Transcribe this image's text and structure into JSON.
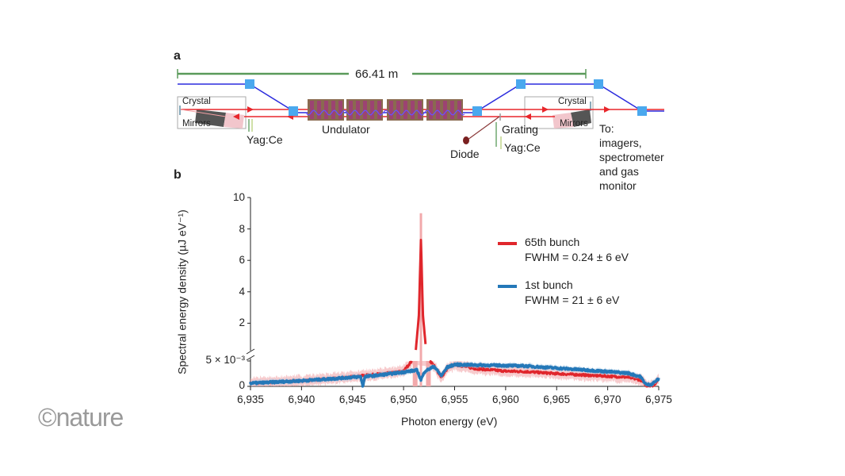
{
  "panel_a": {
    "label": "a",
    "distance": "66.41 m",
    "labels": {
      "crystal_left": "Crystal",
      "mirrors_left": "Mirrors",
      "yag_left": "Yag:Ce",
      "undulator": "Undulator",
      "diode": "Diode",
      "grating": "Grating",
      "yag_right": "Yag:Ce",
      "crystal_right": "Crystal",
      "mirrors_right": "Mirrors",
      "to_1": "To:",
      "to_2": "imagers,",
      "to_3": "spectrometer",
      "to_4": "and gas",
      "to_5": "monitor"
    },
    "colors": {
      "electron": "#2b2bdd",
      "xray": "#e8262b",
      "scale": "#5a9a5a",
      "element": "#4aa8ee"
    }
  },
  "logo": "©nature",
  "chart_data": {
    "panel_label": "b",
    "type": "line",
    "xlabel": "Photon energy (eV)",
    "ylabel": "Spectral energy density (µJ eV⁻¹)",
    "xlim": [
      6935,
      6975
    ],
    "x_ticks": [
      "6,935",
      "6,940",
      "6,945",
      "6,950",
      "6,955",
      "6,960",
      "6,965",
      "6,970",
      "6,975"
    ],
    "y_axis_broken": true,
    "upper_ylim": [
      0,
      10
    ],
    "upper_ticks": [
      "2",
      "4",
      "6",
      "8",
      "10"
    ],
    "lower_ylim": [
      0,
      0.005
    ],
    "lower_ticks": [
      "0",
      "5 × 10⁻³"
    ],
    "legend_position": "right",
    "series": [
      {
        "name": "65th bunch",
        "annotation": "FWHM = 0.24 ± 6 eV",
        "color": "#e0262c",
        "band_color": "#f2a9ab",
        "x": [
          6935,
          6937,
          6940,
          6943,
          6945,
          6947,
          6949,
          6950,
          6950.8,
          6951.2,
          6951.5,
          6951.7,
          6951.9,
          6952.2,
          6952.6,
          6953,
          6953.7,
          6954.3,
          6955,
          6957,
          6960,
          6962,
          6965,
          6968,
          6970,
          6972,
          6973.3,
          6973.8,
          6974.5,
          6975
        ],
        "y": [
          0.0006,
          0.0008,
          0.0011,
          0.0015,
          0.0019,
          0.0023,
          0.0027,
          0.003,
          0.005,
          0.3,
          2.5,
          7.3,
          2.5,
          0.3,
          0.005,
          0.004,
          0.0018,
          0.0035,
          0.0043,
          0.0035,
          0.003,
          0.0029,
          0.0025,
          0.0022,
          0.002,
          0.0018,
          0.0012,
          0.0001,
          0.0002,
          0.0015
        ],
        "band": 0.0012,
        "peak_band_max": 9.0
      },
      {
        "name": "1st bunch",
        "annotation": "FWHM = 21 ± 6 eV",
        "color": "#2478b8",
        "band_color": "#a9c9e6",
        "x": [
          6935,
          6937,
          6940,
          6943,
          6945,
          6945.8,
          6946,
          6946.2,
          6948,
          6950,
          6951.3,
          6951.7,
          6952.1,
          6953,
          6953.7,
          6954.3,
          6955,
          6957,
          6960,
          6962,
          6965,
          6968,
          6970,
          6972,
          6973.2,
          6973.8,
          6974.3,
          6975
        ],
        "y": [
          0.0006,
          0.0008,
          0.0011,
          0.0015,
          0.0018,
          0.0019,
          0.0,
          0.0019,
          0.0023,
          0.0028,
          0.0032,
          0.0013,
          0.003,
          0.0039,
          0.0021,
          0.0038,
          0.0043,
          0.0042,
          0.0041,
          0.004,
          0.0036,
          0.0032,
          0.0029,
          0.0026,
          0.0019,
          0.0003,
          0.0004,
          0.0015
        ],
        "band": 0.0006
      }
    ]
  }
}
